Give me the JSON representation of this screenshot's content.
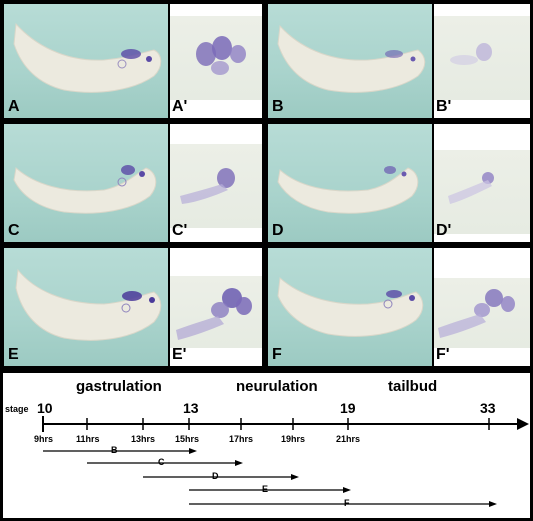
{
  "panels": [
    {
      "id": "A",
      "main_label": "A",
      "inset_label": "A'"
    },
    {
      "id": "B",
      "main_label": "B",
      "inset_label": "B'"
    },
    {
      "id": "C",
      "main_label": "C",
      "inset_label": "C'"
    },
    {
      "id": "D",
      "main_label": "D",
      "inset_label": "D'"
    },
    {
      "id": "E",
      "main_label": "E",
      "inset_label": "E'"
    },
    {
      "id": "F",
      "main_label": "F",
      "inset_label": "F'"
    }
  ],
  "timeline": {
    "phases": [
      "gastrulation",
      "neurulation",
      "tailbud"
    ],
    "stage_label": "stage",
    "stages": [
      "10",
      "13",
      "19",
      "33"
    ],
    "hours": [
      "9hrs",
      "11hrs",
      "13hrs",
      "15hrs",
      "17hrs",
      "19hrs",
      "21hrs"
    ],
    "ranges": [
      "B",
      "C",
      "D",
      "E",
      "F"
    ]
  },
  "colors": {
    "background": "#000000",
    "embryo_bg": "#a9d3cc",
    "stain": "#5a4aa6"
  }
}
